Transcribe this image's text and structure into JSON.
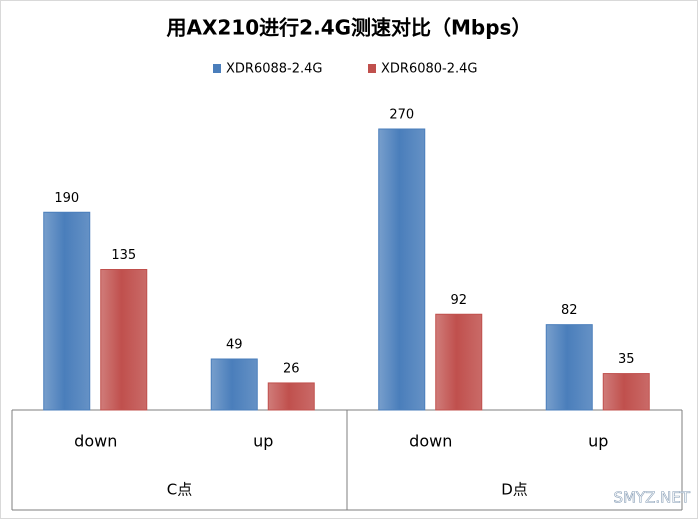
{
  "chart_data": {
    "type": "bar",
    "title": "用AX210进行2.4G测速对比（Mbps）",
    "categories": [
      "down",
      "up",
      "down",
      "up"
    ],
    "groups": [
      "C点",
      "D点"
    ],
    "series": [
      {
        "name": "XDR6088-2.4G",
        "color": "#4a7ebb",
        "values": [
          190,
          49,
          270,
          82
        ]
      },
      {
        "name": "XDR6080-2.4G",
        "color": "#c0504d",
        "values": [
          135,
          26,
          92,
          35
        ]
      }
    ],
    "watermark": "SMYZ.NET"
  }
}
